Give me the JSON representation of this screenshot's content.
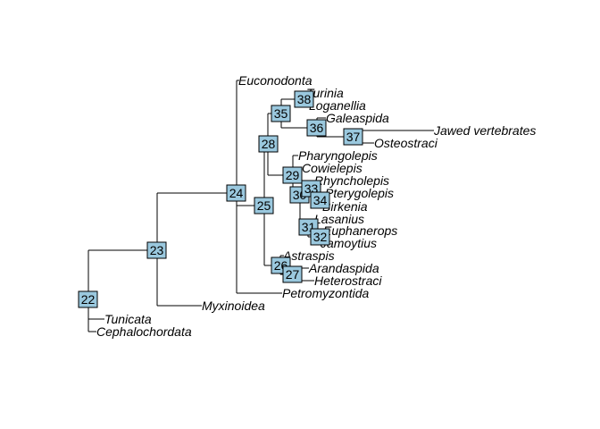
{
  "tree": {
    "tips": [
      "Euconodonta",
      "Turinia",
      "Loganellia",
      "Galeaspida",
      "Jawed vertebrates",
      "Osteostraci",
      "Pharyngolepis",
      "Cowielepis",
      "Rhyncholepis",
      "Pterygolepis",
      "Birkenia",
      "Lasanius",
      "Euphanerops",
      "Jamoytius",
      "Astraspis",
      "Arandaspida",
      "Heterostraci",
      "Petromyzontida",
      "Myxinoidea",
      "Tunicata",
      "Cephalochordata"
    ],
    "node_labels": [
      "22",
      "23",
      "24",
      "25",
      "26",
      "27",
      "28",
      "29",
      "30",
      "31",
      "32",
      "33",
      "34",
      "35",
      "36",
      "37",
      "38"
    ],
    "colors": {
      "node_fill": "#9ac8de",
      "branch": "#000000"
    }
  }
}
